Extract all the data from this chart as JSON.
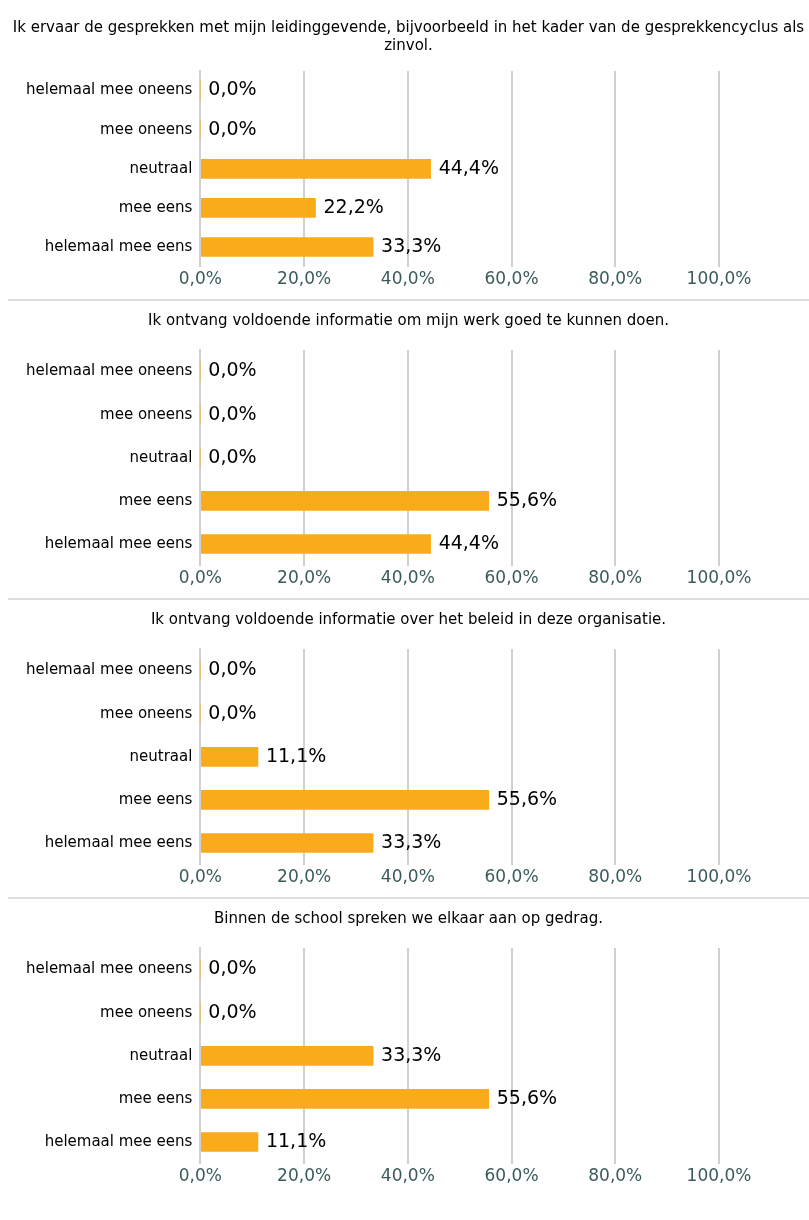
{
  "chart_data": [
    {
      "type": "bar",
      "orientation": "horizontal",
      "title": "Ik ervaar de gesprekken met mijn leidinggevende, bijvoorbeeld in het kader van de gesprekkencyclus als zinvol.",
      "categories": [
        "helemaal mee oneens",
        "mee oneens",
        "neutraal",
        "mee eens",
        "helemaal mee eens"
      ],
      "values": [
        0,
        0,
        44.4,
        22.2,
        33.3
      ],
      "value_labels": [
        "0,0%",
        "0,0%",
        "44,4%",
        "22,2%",
        "33,3%"
      ],
      "color": "#f9ab1a",
      "xlim": [
        0,
        100
      ],
      "xticks": [
        {
          "value": 0,
          "label": "0,0%"
        },
        {
          "value": 20,
          "label": "20,0%"
        },
        {
          "value": 40,
          "label": "40,0%"
        },
        {
          "value": 60,
          "label": "60,0%"
        },
        {
          "value": 80,
          "label": "80,0%"
        },
        {
          "value": 100,
          "label": "100,0%"
        }
      ],
      "grid": "x",
      "legend": false
    },
    {
      "type": "bar",
      "orientation": "horizontal",
      "title": "Ik ontvang voldoende informatie om mijn werk goed te kunnen doen.",
      "categories": [
        "helemaal mee oneens",
        "mee oneens",
        "neutraal",
        "mee eens",
        "helemaal mee eens"
      ],
      "values": [
        0,
        0,
        0,
        55.6,
        44.4
      ],
      "value_labels": [
        "0,0%",
        "0,0%",
        "0,0%",
        "55,6%",
        "44,4%"
      ],
      "color": "#f9ab1a",
      "xlim": [
        0,
        100
      ],
      "xticks": [
        {
          "value": 0,
          "label": "0,0%"
        },
        {
          "value": 20,
          "label": "20,0%"
        },
        {
          "value": 40,
          "label": "40,0%"
        },
        {
          "value": 60,
          "label": "60,0%"
        },
        {
          "value": 80,
          "label": "80,0%"
        },
        {
          "value": 100,
          "label": "100,0%"
        }
      ],
      "grid": "x",
      "legend": false
    },
    {
      "type": "bar",
      "orientation": "horizontal",
      "title": "Ik ontvang voldoende informatie over het beleid in deze organisatie.",
      "categories": [
        "helemaal mee oneens",
        "mee oneens",
        "neutraal",
        "mee eens",
        "helemaal mee eens"
      ],
      "values": [
        0,
        0,
        11.1,
        55.6,
        33.3
      ],
      "value_labels": [
        "0,0%",
        "0,0%",
        "11,1%",
        "55,6%",
        "33,3%"
      ],
      "color": "#f9ab1a",
      "xlim": [
        0,
        100
      ],
      "xticks": [
        {
          "value": 0,
          "label": "0,0%"
        },
        {
          "value": 20,
          "label": "20,0%"
        },
        {
          "value": 40,
          "label": "40,0%"
        },
        {
          "value": 60,
          "label": "60,0%"
        },
        {
          "value": 80,
          "label": "80,0%"
        },
        {
          "value": 100,
          "label": "100,0%"
        }
      ],
      "grid": "x",
      "legend": false
    },
    {
      "type": "bar",
      "orientation": "horizontal",
      "title": "Binnen de school spreken we elkaar aan op gedrag.",
      "categories": [
        "helemaal mee oneens",
        "mee oneens",
        "neutraal",
        "mee eens",
        "helemaal mee eens"
      ],
      "values": [
        0,
        0,
        33.3,
        55.6,
        11.1
      ],
      "value_labels": [
        "0,0%",
        "0,0%",
        "33,3%",
        "55,6%",
        "11,1%"
      ],
      "color": "#f9ab1a",
      "xlim": [
        0,
        100
      ],
      "xticks": [
        {
          "value": 0,
          "label": "0,0%"
        },
        {
          "value": 20,
          "label": "20,0%"
        },
        {
          "value": 40,
          "label": "40,0%"
        },
        {
          "value": 60,
          "label": "60,0%"
        },
        {
          "value": 80,
          "label": "80,0%"
        },
        {
          "value": 100,
          "label": "100,0%"
        }
      ],
      "grid": "x",
      "legend": false
    }
  ]
}
